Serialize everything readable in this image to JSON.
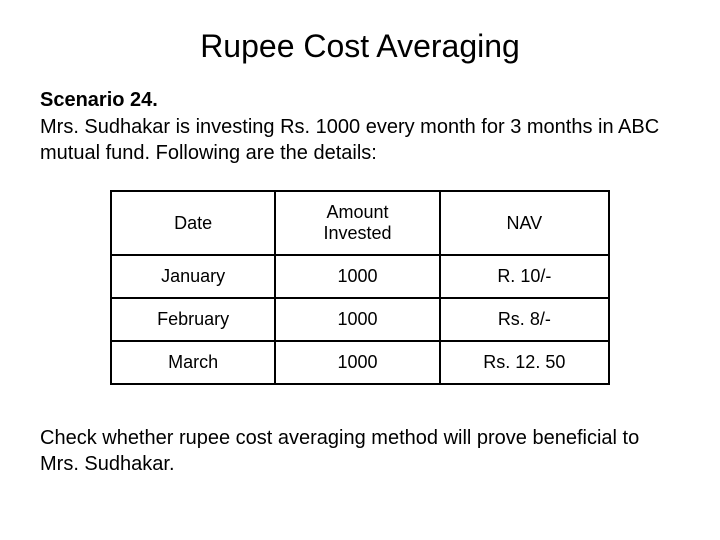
{
  "title": "Rupee Cost Averaging",
  "scenario_label": "Scenario 24.",
  "description": "Mrs. Sudhakar is investing Rs. 1000 every month for 3 months in ABC mutual fund. Following are the details:",
  "table": {
    "headers": {
      "date": "Date",
      "amount": "Amount Invested",
      "nav": "NAV"
    },
    "rows": [
      {
        "date": "January",
        "amount": "1000",
        "nav": "R. 10/-"
      },
      {
        "date": "February",
        "amount": "1000",
        "nav": "Rs. 8/-"
      },
      {
        "date": "March",
        "amount": "1000",
        "nav": "Rs. 12. 50"
      }
    ],
    "border_color": "#000000",
    "border_width": 2,
    "column_widths": [
      "33%",
      "33%",
      "34%"
    ],
    "font_size": 18,
    "header_font_weight": "normal"
  },
  "footer_text": "Check whether rupee cost averaging method will prove beneficial to Mrs. Sudhakar.",
  "styling": {
    "background_color": "#ffffff",
    "text_color": "#000000",
    "title_fontsize": 32,
    "body_fontsize": 20,
    "font_family": "Arial"
  }
}
